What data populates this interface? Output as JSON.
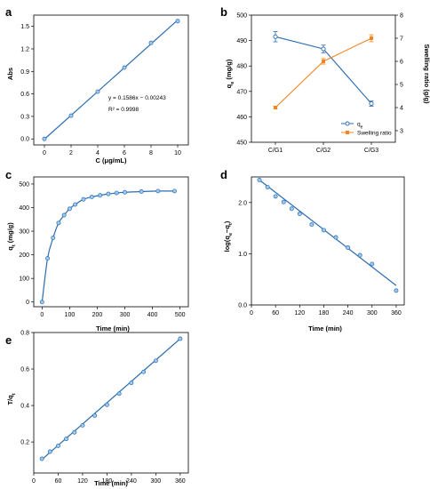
{
  "colors": {
    "blue": "#2b6cb0",
    "orange": "#f5841f",
    "axis": "#000000"
  },
  "chart_data": [
    {
      "id": "a",
      "panel": "a",
      "type": "line",
      "xlabel": "C (μg/mL)",
      "ylabel": "Abs",
      "xlim": [
        -0.8,
        10.8
      ],
      "ylim": [
        -0.08,
        1.65
      ],
      "xticks": [
        0,
        2,
        4,
        6,
        8,
        10
      ],
      "yticks": [
        0.0,
        0.3,
        0.6,
        0.9,
        1.2,
        1.5
      ],
      "ytick_labels": [
        "0.0",
        "0.3",
        "0.6",
        "0.9",
        "1.2",
        "1.5"
      ],
      "series": [
        {
          "x": [
            0,
            2,
            4,
            6,
            8,
            10
          ],
          "y": [
            0.0,
            0.31,
            0.63,
            0.95,
            1.28,
            1.57
          ]
        }
      ],
      "fit": {
        "x": [
          0,
          10
        ],
        "y": [
          -0.00243,
          1.58357
        ]
      },
      "annotations": [
        "y = 0.1586x − 0.00243",
        "R² = 0.9998"
      ]
    },
    {
      "id": "b",
      "panel": "b",
      "type": "line",
      "categories": [
        "C/G1",
        "C/G2",
        "C/G3"
      ],
      "ylabel": "qe (mg/g)",
      "y2label": "Swelling ratio (g/g)",
      "ylim": [
        450,
        500
      ],
      "y2lim": [
        2.5,
        8
      ],
      "yticks": [
        450,
        460,
        470,
        480,
        490,
        500
      ],
      "y2ticks": [
        3,
        4,
        5,
        6,
        7,
        8
      ],
      "series": [
        {
          "name": "qe",
          "axis": "left",
          "color": "#2b6cb0",
          "values": [
            491.5,
            486.7,
            465.2
          ],
          "errors": [
            2.0,
            1.5,
            1.0
          ]
        },
        {
          "name": "Swelling ratio",
          "axis": "right",
          "color": "#f5841f",
          "values": [
            4.0,
            6.0,
            7.0
          ],
          "errors": [
            0.05,
            0.12,
            0.15
          ]
        }
      ],
      "legend": "bottom-right"
    },
    {
      "id": "c",
      "panel": "c",
      "type": "line",
      "xlabel": "Time (min)",
      "ylabel": "qt (mg/g)",
      "xlim": [
        -30,
        530
      ],
      "ylim": [
        -20,
        530
      ],
      "xticks": [
        0,
        100,
        200,
        300,
        400,
        500
      ],
      "yticks": [
        0,
        100,
        200,
        300,
        400,
        500
      ],
      "series": [
        {
          "x": [
            0,
            20,
            40,
            60,
            80,
            100,
            120,
            150,
            180,
            210,
            240,
            270,
            300,
            360,
            420,
            480
          ],
          "y": [
            0,
            185,
            272,
            335,
            368,
            395,
            413,
            435,
            445,
            452,
            458,
            462,
            465,
            468,
            470,
            470
          ]
        }
      ]
    },
    {
      "id": "d",
      "panel": "d",
      "type": "scatter",
      "xlabel": "Time (min)",
      "ylabel": "log(qe−qt)",
      "xlim": [
        0,
        380
      ],
      "ylim": [
        0,
        2.5
      ],
      "xticks": [
        0,
        60,
        120,
        180,
        240,
        300,
        360
      ],
      "yticks": [
        0,
        1,
        2
      ],
      "ytick_labels": [
        "0.0",
        "1.0",
        "2.0"
      ],
      "series": [
        {
          "x": [
            20,
            40,
            60,
            80,
            100,
            120,
            150,
            180,
            210,
            240,
            270,
            300,
            360
          ],
          "y": [
            2.44,
            2.3,
            2.12,
            2.01,
            1.88,
            1.78,
            1.57,
            1.46,
            1.32,
            1.12,
            0.97,
            0.8,
            0.28
          ]
        }
      ],
      "fit": {
        "x": [
          20,
          360
        ],
        "y": [
          2.44,
          0.38
        ]
      }
    },
    {
      "id": "e",
      "panel": "e",
      "type": "scatter",
      "xlabel": "Time (min)",
      "ylabel": "T/qt",
      "xlim": [
        0,
        380
      ],
      "ylim": [
        0.03,
        0.8
      ],
      "xticks": [
        0,
        60,
        120,
        180,
        240,
        300,
        360
      ],
      "yticks": [
        0.2,
        0.4,
        0.6,
        0.8
      ],
      "ytick_labels": [
        "0.2",
        "0.4",
        "0.6",
        "0.8"
      ],
      "series": [
        {
          "x": [
            20,
            40,
            60,
            80,
            100,
            120,
            150,
            180,
            210,
            240,
            270,
            300,
            360
          ],
          "y": [
            0.108,
            0.147,
            0.179,
            0.217,
            0.253,
            0.291,
            0.345,
            0.404,
            0.465,
            0.524,
            0.584,
            0.645,
            0.766
          ]
        }
      ],
      "fit": {
        "x": [
          20,
          360
        ],
        "y": [
          0.104,
          0.766
        ]
      }
    }
  ]
}
